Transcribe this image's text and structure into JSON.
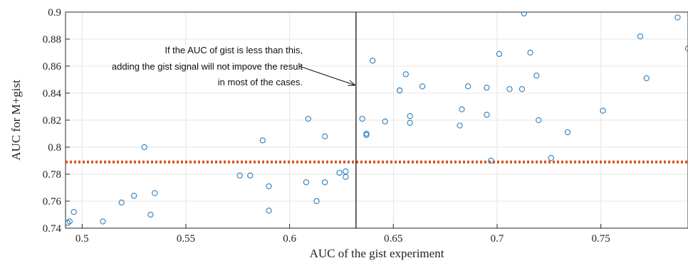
{
  "chart_data": {
    "type": "scatter",
    "title": "",
    "xlabel": "AUC of the gist experiment",
    "ylabel": "AUC for M+gist",
    "xlim": [
      0.492,
      0.792
    ],
    "ylim": [
      0.74,
      0.9
    ],
    "x_ticks": [
      0.5,
      0.55,
      0.6,
      0.65,
      0.7,
      0.75
    ],
    "x_tick_labels": [
      "0.5",
      "0.55",
      "0.6",
      "0.65",
      "0.7",
      "0.75"
    ],
    "y_ticks": [
      0.74,
      0.76,
      0.78,
      0.8,
      0.82,
      0.84,
      0.86,
      0.88,
      0.9
    ],
    "y_tick_labels": [
      "0.74",
      "0.76",
      "0.78",
      "0.8",
      "0.82",
      "0.84",
      "0.86",
      "0.88",
      "0.9"
    ],
    "grid": true,
    "marker_color": "#2b7fc0",
    "baseline": {
      "y": 0.789,
      "color": "#d9531e",
      "style": "dotted"
    },
    "threshold": {
      "x": 0.632,
      "color": "#000000"
    },
    "annotation": {
      "lines": [
        "If the AUC of gist is less than this,",
        "adding the gist signal will not impove the result",
        "in most of the cases."
      ],
      "arrow_to": {
        "x": 0.632,
        "y": 0.846
      }
    },
    "points": [
      {
        "x": 0.493,
        "y": 0.744
      },
      {
        "x": 0.494,
        "y": 0.745
      },
      {
        "x": 0.496,
        "y": 0.752
      },
      {
        "x": 0.51,
        "y": 0.745
      },
      {
        "x": 0.519,
        "y": 0.759
      },
      {
        "x": 0.525,
        "y": 0.764
      },
      {
        "x": 0.53,
        "y": 0.8
      },
      {
        "x": 0.533,
        "y": 0.75
      },
      {
        "x": 0.535,
        "y": 0.766
      },
      {
        "x": 0.576,
        "y": 0.779
      },
      {
        "x": 0.581,
        "y": 0.779
      },
      {
        "x": 0.587,
        "y": 0.805
      },
      {
        "x": 0.59,
        "y": 0.753
      },
      {
        "x": 0.59,
        "y": 0.771
      },
      {
        "x": 0.608,
        "y": 0.774
      },
      {
        "x": 0.609,
        "y": 0.821
      },
      {
        "x": 0.613,
        "y": 0.76
      },
      {
        "x": 0.617,
        "y": 0.774
      },
      {
        "x": 0.617,
        "y": 0.808
      },
      {
        "x": 0.624,
        "y": 0.781
      },
      {
        "x": 0.627,
        "y": 0.782
      },
      {
        "x": 0.627,
        "y": 0.778
      },
      {
        "x": 0.635,
        "y": 0.821
      },
      {
        "x": 0.637,
        "y": 0.809
      },
      {
        "x": 0.637,
        "y": 0.81
      },
      {
        "x": 0.64,
        "y": 0.864
      },
      {
        "x": 0.646,
        "y": 0.819
      },
      {
        "x": 0.653,
        "y": 0.842
      },
      {
        "x": 0.653,
        "y": 0.842
      },
      {
        "x": 0.656,
        "y": 0.854
      },
      {
        "x": 0.658,
        "y": 0.823
      },
      {
        "x": 0.658,
        "y": 0.818
      },
      {
        "x": 0.664,
        "y": 0.845
      },
      {
        "x": 0.682,
        "y": 0.816
      },
      {
        "x": 0.683,
        "y": 0.828
      },
      {
        "x": 0.686,
        "y": 0.845
      },
      {
        "x": 0.695,
        "y": 0.844
      },
      {
        "x": 0.695,
        "y": 0.824
      },
      {
        "x": 0.697,
        "y": 0.79
      },
      {
        "x": 0.701,
        "y": 0.869
      },
      {
        "x": 0.706,
        "y": 0.843
      },
      {
        "x": 0.712,
        "y": 0.843
      },
      {
        "x": 0.713,
        "y": 0.899
      },
      {
        "x": 0.716,
        "y": 0.87
      },
      {
        "x": 0.719,
        "y": 0.853
      },
      {
        "x": 0.72,
        "y": 0.82
      },
      {
        "x": 0.726,
        "y": 0.792
      },
      {
        "x": 0.734,
        "y": 0.811
      },
      {
        "x": 0.751,
        "y": 0.827
      },
      {
        "x": 0.769,
        "y": 0.882
      },
      {
        "x": 0.772,
        "y": 0.851
      },
      {
        "x": 0.787,
        "y": 0.896
      },
      {
        "x": 0.792,
        "y": 0.873
      }
    ]
  }
}
